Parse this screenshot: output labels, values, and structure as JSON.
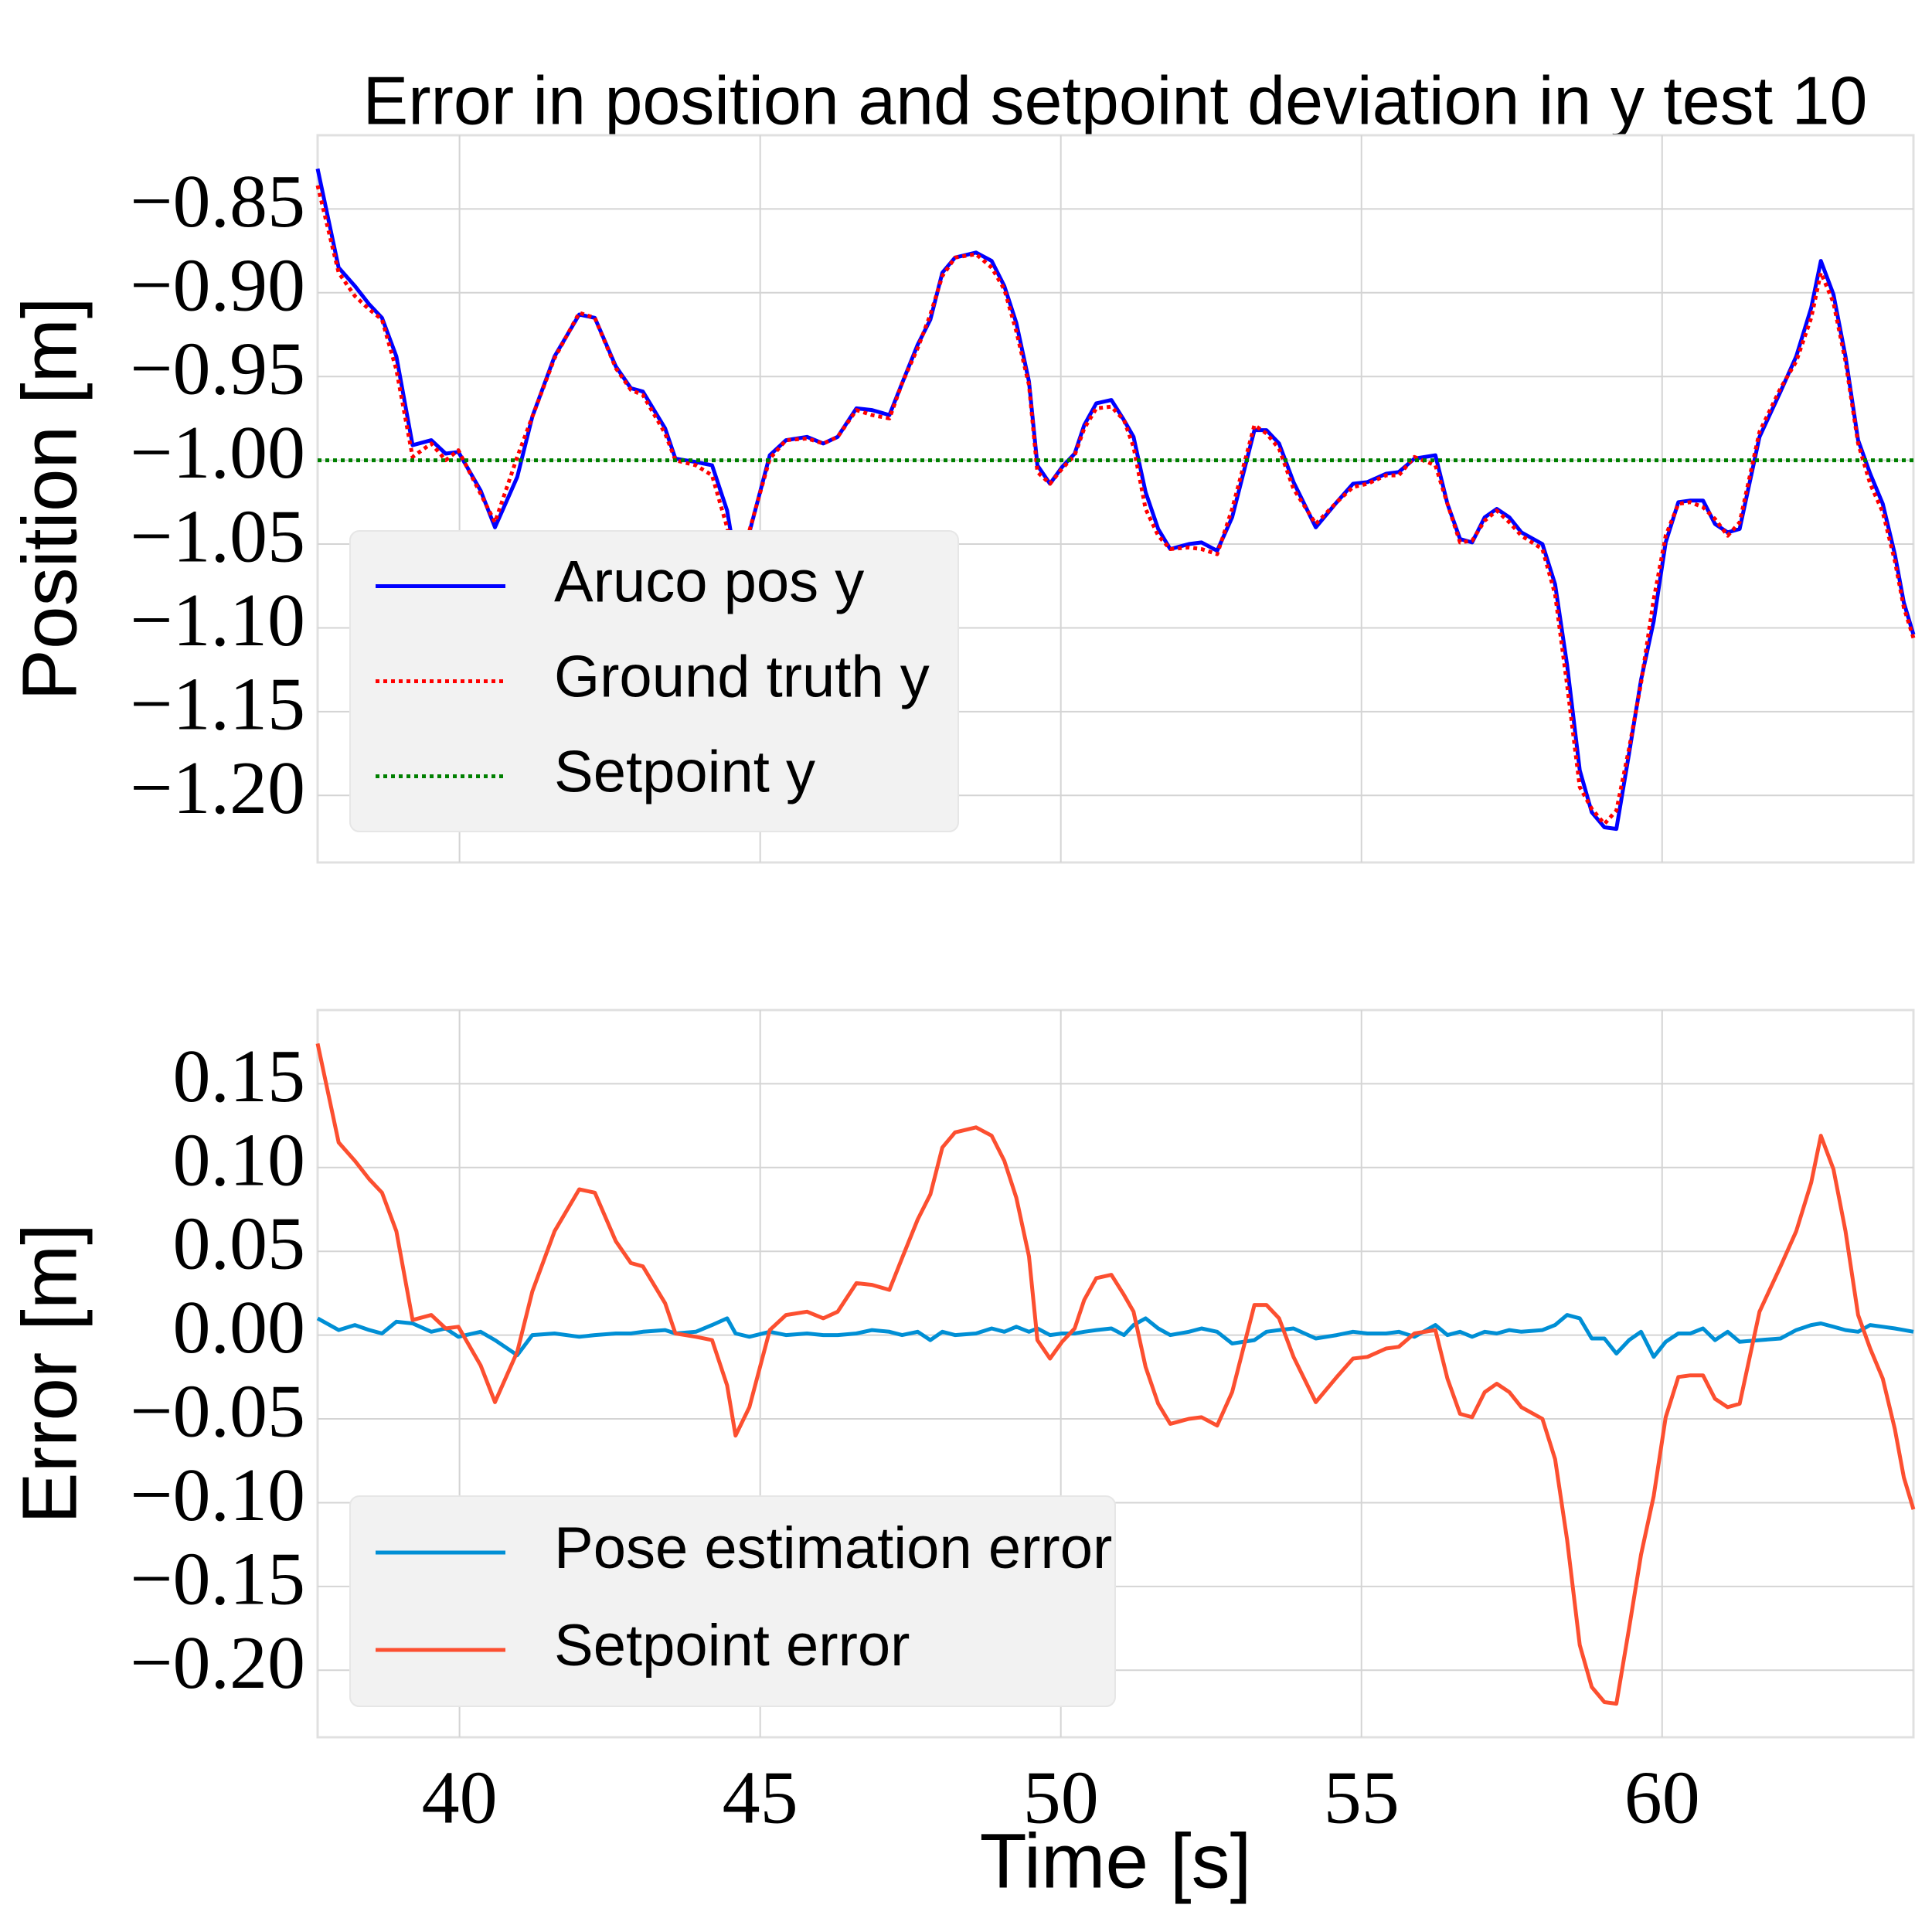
{
  "chart_data": [
    {
      "type": "line",
      "title": "Error in position and setpoint deviation in y test 10",
      "ylabel": "Position [m]",
      "grid": true,
      "legend": "lower left",
      "show_xticklabels": false,
      "xlim": [
        37.64,
        64.18
      ],
      "ylim": [
        -1.24,
        -0.806
      ],
      "xticks": [
        40,
        45,
        50,
        55,
        60
      ],
      "yticks": [
        {
          "value": -0.85,
          "label": "−0.85"
        },
        {
          "value": -0.9,
          "label": "−0.90"
        },
        {
          "value": -0.95,
          "label": "−0.95"
        },
        {
          "value": -1.0,
          "label": "−1.00"
        },
        {
          "value": -1.05,
          "label": "−1.05"
        },
        {
          "value": -1.1,
          "label": "−1.10"
        },
        {
          "value": -1.15,
          "label": "−1.15"
        },
        {
          "value": -1.2,
          "label": "−1.20"
        }
      ],
      "x": [
        37.64,
        37.99,
        38.26,
        38.5,
        38.71,
        38.95,
        39.22,
        39.53,
        39.77,
        39.98,
        40.35,
        40.59,
        40.96,
        41.21,
        41.58,
        41.99,
        42.25,
        42.6,
        42.85,
        43.05,
        43.42,
        43.59,
        43.93,
        44.2,
        44.45,
        44.59,
        44.82,
        45.16,
        45.43,
        45.78,
        46.05,
        46.29,
        46.6,
        46.86,
        47.15,
        47.36,
        47.62,
        47.83,
        48.03,
        48.24,
        48.59,
        48.85,
        49.06,
        49.26,
        49.47,
        49.61,
        49.82,
        50.02,
        50.23,
        50.39,
        50.59,
        50.84,
        51.05,
        51.21,
        51.41,
        51.62,
        51.82,
        52.13,
        52.34,
        52.6,
        52.85,
        53.22,
        53.42,
        53.63,
        53.87,
        54.24,
        54.59,
        54.86,
        55.1,
        55.41,
        55.62,
        55.88,
        56.23,
        56.43,
        56.64,
        56.84,
        57.05,
        57.25,
        57.46,
        57.66,
        58.01,
        58.22,
        58.42,
        58.63,
        58.83,
        59.04,
        59.24,
        59.45,
        59.65,
        59.86,
        60.06,
        60.27,
        60.47,
        60.68,
        60.88,
        61.09,
        61.29,
        61.62,
        61.97,
        62.23,
        62.48,
        62.64,
        62.85,
        63.05,
        63.26,
        63.46,
        63.67,
        63.87,
        64.02,
        64.18
      ],
      "series": [
        {
          "name": "Aruco pos y",
          "color": "#0000ff",
          "style": "solid",
          "values": [
            -0.826,
            -0.885,
            -0.896,
            -0.907,
            -0.915,
            -0.938,
            -0.991,
            -0.988,
            -0.996,
            -0.995,
            -1.018,
            -1.04,
            -1.01,
            -0.974,
            -0.938,
            -0.913,
            -0.915,
            -0.944,
            -0.957,
            -0.959,
            -0.981,
            -0.999,
            -1.001,
            -1.003,
            -1.03,
            -1.06,
            -1.043,
            -0.997,
            -0.988,
            -0.986,
            -0.99,
            -0.986,
            -0.969,
            -0.97,
            -0.973,
            -0.954,
            -0.931,
            -0.916,
            -0.888,
            -0.879,
            -0.876,
            -0.881,
            -0.896,
            -0.918,
            -0.953,
            -1.003,
            -1.014,
            -1.004,
            -0.996,
            -0.979,
            -0.966,
            -0.964,
            -0.976,
            -0.986,
            -1.019,
            -1.041,
            -1.053,
            -1.05,
            -1.049,
            -1.054,
            -1.034,
            -0.982,
            -0.982,
            -0.99,
            -1.013,
            -1.04,
            -1.025,
            -1.014,
            -1.013,
            -1.008,
            -1.007,
            -0.999,
            -0.997,
            -1.026,
            -1.047,
            -1.049,
            -1.034,
            -1.029,
            -1.034,
            -1.043,
            -1.05,
            -1.074,
            -1.122,
            -1.185,
            -1.21,
            -1.219,
            -1.22,
            -1.175,
            -1.131,
            -1.096,
            -1.049,
            -1.025,
            -1.024,
            -1.024,
            -1.038,
            -1.043,
            -1.041,
            -0.986,
            -0.959,
            -0.938,
            -0.909,
            -0.881,
            -0.901,
            -0.938,
            -0.988,
            -1.008,
            -1.026,
            -1.056,
            -1.085,
            -1.104
          ]
        },
        {
          "name": "Ground truth y",
          "color": "#ff0000",
          "style": "dotted",
          "values": [
            -0.836,
            -0.888,
            -0.902,
            -0.91,
            -0.916,
            -0.946,
            -0.998,
            -0.99,
            -1.0,
            -0.994,
            -1.02,
            -1.037,
            -0.998,
            -0.974,
            -0.939,
            -0.912,
            -0.915,
            -0.945,
            -0.958,
            -0.961,
            -0.984,
            -1.0,
            -1.003,
            -1.009,
            -1.04,
            -1.061,
            -1.042,
            -0.999,
            -0.988,
            -0.987,
            -0.99,
            -0.986,
            -0.97,
            -0.973,
            -0.975,
            -0.954,
            -0.933,
            -0.913,
            -0.89,
            -0.879,
            -0.877,
            -0.885,
            -0.898,
            -0.923,
            -0.955,
            -1.007,
            -1.014,
            -1.005,
            -0.997,
            -0.981,
            -0.969,
            -0.968,
            -0.976,
            -0.992,
            -1.029,
            -1.045,
            -1.053,
            -1.052,
            -1.053,
            -1.056,
            -1.029,
            -0.979,
            -0.984,
            -0.993,
            -1.017,
            -1.038,
            -1.025,
            -1.016,
            -1.014,
            -1.009,
            -1.009,
            -0.998,
            -1.003,
            -1.026,
            -1.049,
            -1.048,
            -1.036,
            -1.03,
            -1.037,
            -1.045,
            -1.053,
            -1.08,
            -1.134,
            -1.195,
            -1.208,
            -1.217,
            -1.209,
            -1.172,
            -1.133,
            -1.083,
            -1.045,
            -1.026,
            -1.025,
            -1.028,
            -1.035,
            -1.045,
            -1.037,
            -0.983,
            -0.957,
            -0.941,
            -0.915,
            -0.888,
            -0.906,
            -0.941,
            -0.99,
            -1.014,
            -1.031,
            -1.06,
            -1.088,
            -1.106
          ]
        },
        {
          "name": "Setpoint y",
          "color": "#008000",
          "style": "dotted",
          "x": [
            37.64,
            64.18
          ],
          "values": [
            -1.0,
            -1.0
          ]
        }
      ]
    },
    {
      "type": "line",
      "ylabel": "Error [m]",
      "xlabel": "Time [s]",
      "grid": true,
      "legend": "lower left",
      "show_xticklabels": true,
      "xlim": [
        37.64,
        64.18
      ],
      "ylim": [
        -0.24,
        0.194
      ],
      "xticks": [
        40,
        45,
        50,
        55,
        60
      ],
      "yticks": [
        0.15,
        {
          "value": 0.1,
          "label": "0.10"
        },
        0.05,
        {
          "value": 0.0,
          "label": "0.00"
        },
        {
          "value": -0.05,
          "label": "−0.05"
        },
        {
          "value": -0.1,
          "label": "−0.10"
        },
        {
          "value": -0.15,
          "label": "−0.15"
        },
        {
          "value": -0.2,
          "label": "−0.20"
        }
      ],
      "x": [
        37.64,
        37.99,
        38.26,
        38.5,
        38.71,
        38.95,
        39.22,
        39.53,
        39.77,
        39.98,
        40.35,
        40.59,
        40.96,
        41.21,
        41.58,
        41.99,
        42.25,
        42.6,
        42.85,
        43.05,
        43.42,
        43.59,
        43.93,
        44.2,
        44.45,
        44.59,
        44.82,
        45.16,
        45.43,
        45.78,
        46.05,
        46.29,
        46.6,
        46.86,
        47.15,
        47.36,
        47.62,
        47.83,
        48.03,
        48.24,
        48.59,
        48.85,
        49.06,
        49.26,
        49.47,
        49.61,
        49.82,
        50.02,
        50.23,
        50.39,
        50.59,
        50.84,
        51.05,
        51.21,
        51.41,
        51.62,
        51.82,
        52.13,
        52.34,
        52.6,
        52.85,
        53.22,
        53.42,
        53.63,
        53.87,
        54.24,
        54.59,
        54.86,
        55.1,
        55.41,
        55.62,
        55.88,
        56.23,
        56.43,
        56.64,
        56.84,
        57.05,
        57.25,
        57.46,
        57.66,
        58.01,
        58.22,
        58.42,
        58.63,
        58.83,
        59.04,
        59.24,
        59.45,
        59.65,
        59.86,
        60.06,
        60.27,
        60.47,
        60.68,
        60.88,
        61.09,
        61.29,
        61.62,
        61.97,
        62.23,
        62.48,
        62.64,
        62.85,
        63.05,
        63.26,
        63.46,
        63.67,
        63.87,
        64.02,
        64.18
      ],
      "series": [
        {
          "name": "Pose estimation error",
          "color": "#008fd5",
          "style": "solid",
          "values": [
            0.01,
            0.003,
            0.006,
            0.003,
            0.001,
            0.008,
            0.007,
            0.002,
            0.004,
            -0.001,
            0.002,
            -0.003,
            -0.012,
            0.0,
            0.001,
            -0.001,
            0.0,
            0.001,
            0.001,
            0.002,
            0.003,
            0.001,
            0.002,
            0.006,
            0.01,
            0.001,
            -0.001,
            0.002,
            0.0,
            0.001,
            0.0,
            0.0,
            0.001,
            0.003,
            0.002,
            0.0,
            0.002,
            -0.003,
            0.002,
            0.0,
            0.001,
            0.004,
            0.002,
            0.005,
            0.002,
            0.004,
            0.0,
            0.001,
            0.001,
            0.002,
            0.003,
            0.004,
            0.0,
            0.006,
            0.01,
            0.004,
            0.0,
            0.002,
            0.004,
            0.002,
            -0.005,
            -0.003,
            0.002,
            0.003,
            0.004,
            -0.002,
            0.0,
            0.002,
            0.001,
            0.001,
            0.002,
            -0.001,
            0.006,
            0.0,
            0.002,
            -0.001,
            0.002,
            0.001,
            0.003,
            0.002,
            0.003,
            0.006,
            0.012,
            0.01,
            -0.002,
            -0.002,
            -0.011,
            -0.003,
            0.002,
            -0.013,
            -0.004,
            0.001,
            0.001,
            0.004,
            -0.003,
            0.002,
            -0.004,
            -0.003,
            -0.002,
            0.003,
            0.006,
            0.007,
            0.005,
            0.003,
            0.002,
            0.006,
            0.005,
            0.004,
            0.003,
            0.002
          ]
        },
        {
          "name": "Setpoint error",
          "color": "#fc4f30",
          "style": "solid",
          "values": [
            0.174,
            0.115,
            0.104,
            0.093,
            0.085,
            0.062,
            0.009,
            0.012,
            0.004,
            0.005,
            -0.018,
            -0.04,
            -0.01,
            0.026,
            0.062,
            0.087,
            0.085,
            0.056,
            0.043,
            0.041,
            0.019,
            0.001,
            -0.001,
            -0.003,
            -0.03,
            -0.06,
            -0.043,
            0.003,
            0.012,
            0.014,
            0.01,
            0.014,
            0.031,
            0.03,
            0.027,
            0.046,
            0.069,
            0.084,
            0.112,
            0.121,
            0.124,
            0.119,
            0.104,
            0.082,
            0.047,
            -0.003,
            -0.014,
            -0.004,
            0.004,
            0.021,
            0.034,
            0.036,
            0.024,
            0.014,
            -0.019,
            -0.041,
            -0.053,
            -0.05,
            -0.049,
            -0.054,
            -0.034,
            0.018,
            0.018,
            0.01,
            -0.013,
            -0.04,
            -0.025,
            -0.014,
            -0.013,
            -0.008,
            -0.007,
            0.001,
            0.003,
            -0.026,
            -0.047,
            -0.049,
            -0.034,
            -0.029,
            -0.034,
            -0.043,
            -0.05,
            -0.074,
            -0.122,
            -0.185,
            -0.21,
            -0.219,
            -0.22,
            -0.175,
            -0.131,
            -0.096,
            -0.049,
            -0.025,
            -0.024,
            -0.024,
            -0.038,
            -0.043,
            -0.041,
            0.014,
            0.041,
            0.062,
            0.091,
            0.119,
            0.099,
            0.062,
            0.012,
            -0.008,
            -0.026,
            -0.056,
            -0.085,
            -0.104
          ]
        }
      ]
    }
  ]
}
